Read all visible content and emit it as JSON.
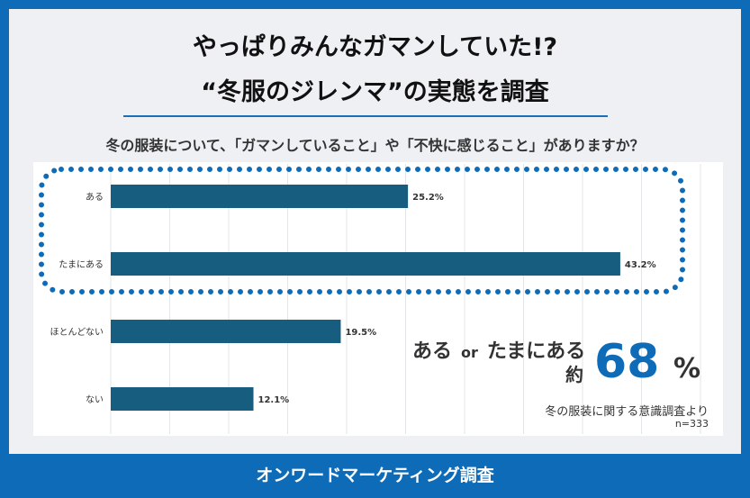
{
  "title_line1": "やっぱりみんなガマンしていた!?",
  "title_line2": "“冬服のジレンマ”の実態を調査",
  "question": "冬の服装について、「ガマンしていること」や「不快に感じること」がありますか？",
  "chart_data": {
    "type": "bar",
    "orientation": "horizontal",
    "categories": [
      "ある",
      "たまにある",
      "ほとんどない",
      "ない"
    ],
    "values": [
      25.2,
      43.2,
      19.5,
      12.1
    ],
    "value_labels": [
      "25.2%",
      "43.2%",
      "19.5%",
      "12.1%"
    ],
    "xlim": [
      0,
      50
    ],
    "grid": true,
    "bar_color": "#165d80",
    "highlight": [
      "ある",
      "たまにある"
    ],
    "highlight_color": "#0e6bb7"
  },
  "callout": {
    "text_a": "ある",
    "text_or": "or",
    "text_b": "たまにある",
    "approx": "約",
    "value": "68",
    "unit": "%"
  },
  "source": "冬の服装に関する意識調査より",
  "sample": "n=333",
  "footer": "オンワードマーケティング調査"
}
